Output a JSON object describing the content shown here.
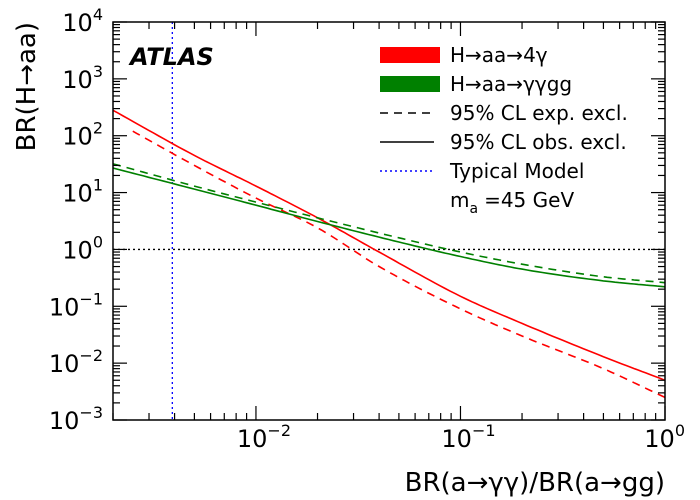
{
  "chart_data": {
    "type": "line",
    "xscale": "log",
    "yscale": "log",
    "xlim": [
      0.002,
      1
    ],
    "ylim": [
      0.001,
      10000
    ],
    "xlabel": "BR(a→γγ)/BR(a→gg)",
    "ylabel": "BR(H→aa)",
    "experiment_label": "ATLAS",
    "x_ticks": [
      {
        "value": 0.01,
        "base": "10",
        "exp": "−2"
      },
      {
        "value": 0.1,
        "base": "10",
        "exp": "−1"
      },
      {
        "value": 1,
        "base": "10",
        "exp": "0"
      }
    ],
    "y_ticks": [
      {
        "value": 0.001,
        "base": "10",
        "exp": "−3"
      },
      {
        "value": 0.01,
        "base": "10",
        "exp": "−2"
      },
      {
        "value": 0.1,
        "base": "10",
        "exp": "−1"
      },
      {
        "value": 1,
        "base": "10",
        "exp": "0"
      },
      {
        "value": 10,
        "base": "10",
        "exp": "1"
      },
      {
        "value": 100,
        "base": "10",
        "exp": "2"
      },
      {
        "value": 1000,
        "base": "10",
        "exp": "3"
      },
      {
        "value": 10000,
        "base": "10",
        "exp": "4"
      }
    ],
    "legend": {
      "placement": "top-right",
      "entries": [
        {
          "text": "H→aa→4γ",
          "style": "box",
          "color": "#ff0000"
        },
        {
          "text": "H→aa→γγgg",
          "style": "box",
          "color": "#008000"
        },
        {
          "text": "95% CL exp. excl.",
          "style": "dashed",
          "color": "#000000"
        },
        {
          "text": "95% CL obs. excl.",
          "style": "solid",
          "color": "#000000"
        },
        {
          "text": "Typical Model",
          "style": "dotted",
          "color": "#0000ff"
        },
        {
          "text": "=45 GeV",
          "style": "none",
          "prefix": "m",
          "subscript": "a"
        }
      ]
    },
    "series": [
      {
        "name": "H→aa→4γ",
        "limit": "observed",
        "color": "#ff0000",
        "dash": "solid",
        "x": [
          0.002,
          0.005,
          0.01,
          0.02,
          0.04,
          0.1,
          0.2,
          0.5,
          1
        ],
        "y": [
          280,
          45,
          13,
          3.6,
          0.9,
          0.15,
          0.05,
          0.013,
          0.005
        ]
      },
      {
        "name": "H→aa→4γ",
        "limit": "expected",
        "color": "#ff0000",
        "dash": "dashed",
        "x": [
          0.0025,
          0.005,
          0.01,
          0.02,
          0.04,
          0.1,
          0.2,
          0.5,
          1
        ],
        "y": [
          120,
          30,
          8,
          2.4,
          0.5,
          0.09,
          0.03,
          0.008,
          0.0025
        ]
      },
      {
        "name": "H→aa→γγgg",
        "limit": "observed",
        "color": "#008000",
        "dash": "solid",
        "x": [
          0.002,
          0.005,
          0.01,
          0.02,
          0.05,
          0.1,
          0.2,
          0.5,
          1
        ],
        "y": [
          27,
          11.5,
          6,
          3.1,
          1.35,
          0.75,
          0.45,
          0.28,
          0.22
        ]
      },
      {
        "name": "H→aa→γγgg",
        "limit": "expected",
        "color": "#008000",
        "dash": "dashed",
        "x": [
          0.002,
          0.005,
          0.01,
          0.02,
          0.05,
          0.1,
          0.2,
          0.5,
          1
        ],
        "y": [
          32,
          13,
          6.8,
          3.6,
          1.6,
          0.9,
          0.55,
          0.33,
          0.26
        ]
      }
    ],
    "reference_lines": [
      {
        "name": "Typical Model",
        "axis": "x",
        "value": 0.0039,
        "color": "#0000ff",
        "dash": "dotted"
      },
      {
        "axis": "y",
        "value": 1,
        "color": "#000000",
        "dash": "dotted"
      }
    ]
  }
}
